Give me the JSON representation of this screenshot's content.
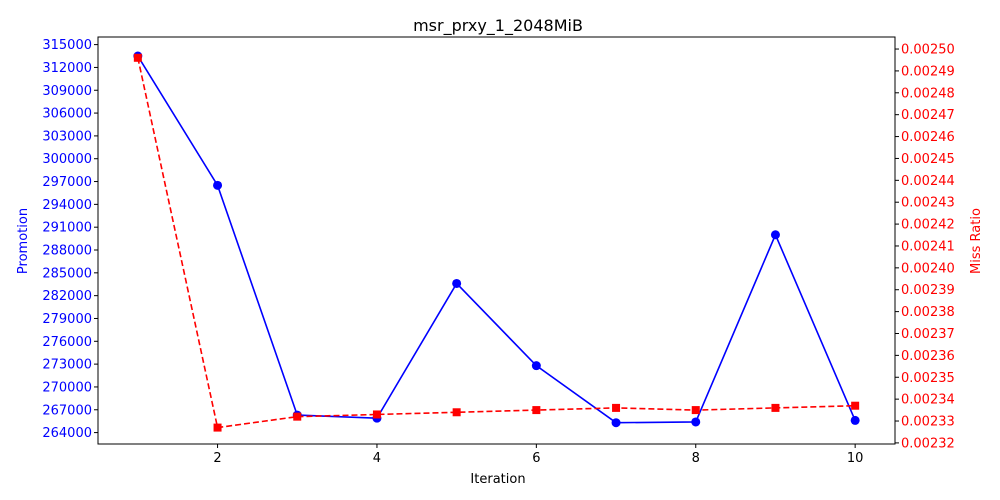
{
  "chart_data": {
    "type": "line",
    "title": "msr_prxy_1_2048MiB",
    "xlabel": "Iteration",
    "y1label": "Promotion",
    "y2label": "Miss Ratio",
    "x": [
      1,
      2,
      3,
      4,
      5,
      6,
      7,
      8,
      9,
      10
    ],
    "xlim": [
      0.5,
      10.5
    ],
    "xticks": [
      2,
      4,
      6,
      8,
      10
    ],
    "series": [
      {
        "axis": "left",
        "color": "#0000ff",
        "line": "solid",
        "marker": "circle",
        "values": [
          313500,
          296500,
          266300,
          265900,
          283600,
          272800,
          265300,
          265400,
          290000,
          265600
        ]
      },
      {
        "axis": "right",
        "color": "#ff0000",
        "line": "dashed",
        "marker": "square",
        "values": [
          0.002496,
          0.002327,
          0.002332,
          0.002333,
          0.002334,
          0.002335,
          0.002336,
          0.002335,
          0.002336,
          0.002337
        ]
      }
    ],
    "y1lim": [
      262500,
      316000
    ],
    "y1ticks": [
      "264000",
      "267000",
      "270000",
      "273000",
      "276000",
      "279000",
      "282000",
      "285000",
      "288000",
      "291000",
      "294000",
      "297000",
      "300000",
      "303000",
      "306000",
      "309000",
      "312000",
      "315000"
    ],
    "y2lim": [
      0.0023195,
      0.0025055
    ],
    "y2ticks": [
      "0.00232",
      "0.00233",
      "0.00234",
      "0.00235",
      "0.00236",
      "0.00237",
      "0.00238",
      "0.00239",
      "0.00240",
      "0.00241",
      "0.00242",
      "0.00243",
      "0.00244",
      "0.00245",
      "0.00246",
      "0.00247",
      "0.00248",
      "0.00249",
      "0.00250"
    ],
    "y2tickspacing": 1e-05,
    "grid": false,
    "legend": "none"
  }
}
